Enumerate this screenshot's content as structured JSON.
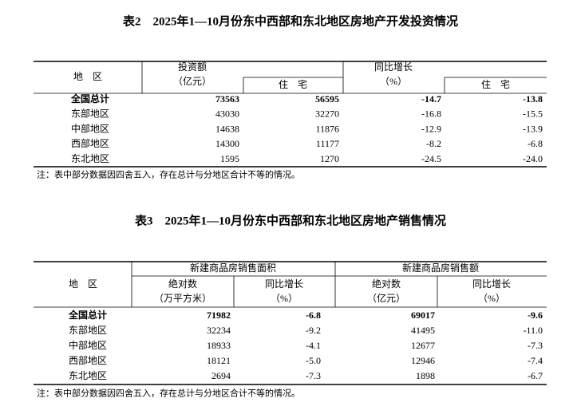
{
  "table2": {
    "title": "表2　2025年1—10月份东中西部和东北地区房地产开发投资情况",
    "header": {
      "region": "地　区",
      "investment": "投资额",
      "investment_unit": "（亿元）",
      "investment_housing": "住　宅",
      "growth": "同比增长",
      "growth_unit": "（%）",
      "growth_housing": "住　宅"
    },
    "rows": [
      [
        "全国总计",
        "73563",
        "56595",
        "-14.7",
        "-13.8"
      ],
      [
        "东部地区",
        "43030",
        "32270",
        "-16.8",
        "-15.5"
      ],
      [
        "中部地区",
        "14638",
        "11876",
        "-12.9",
        "-13.9"
      ],
      [
        "西部地区",
        "14300",
        "11177",
        "-8.2",
        "-6.8"
      ],
      [
        "东北地区",
        "1595",
        "1270",
        "-24.5",
        "-24.0"
      ]
    ],
    "note": "注：表中部分数据因四舍五入，存在总计与分地区合计不等的情况。"
  },
  "table3": {
    "title": "表3　2025年1—10月份东中西部和东北地区房地产销售情况",
    "header": {
      "region": "地　区",
      "area": "新建商品房销售面积",
      "area_abs": "绝对数",
      "area_unit": "（万平方米）",
      "area_growth": "同比增长",
      "area_growth_unit": "（%）",
      "sales": "新建商品房销售额",
      "sales_abs": "绝对数",
      "sales_unit": "（亿元）",
      "sales_growth": "同比增长",
      "sales_growth_unit": "（%）"
    },
    "rows": [
      [
        "全国总计",
        "71982",
        "-6.8",
        "69017",
        "-9.6"
      ],
      [
        "东部地区",
        "32234",
        "-9.2",
        "41495",
        "-11.0"
      ],
      [
        "中部地区",
        "18933",
        "-4.1",
        "12677",
        "-7.3"
      ],
      [
        "西部地区",
        "18121",
        "-5.0",
        "12946",
        "-7.4"
      ],
      [
        "东北地区",
        "2694",
        "-7.3",
        "1898",
        "-6.7"
      ]
    ],
    "note": "注：表中部分数据因四舍五入，存在总计与分地区合计不等的情况。"
  }
}
